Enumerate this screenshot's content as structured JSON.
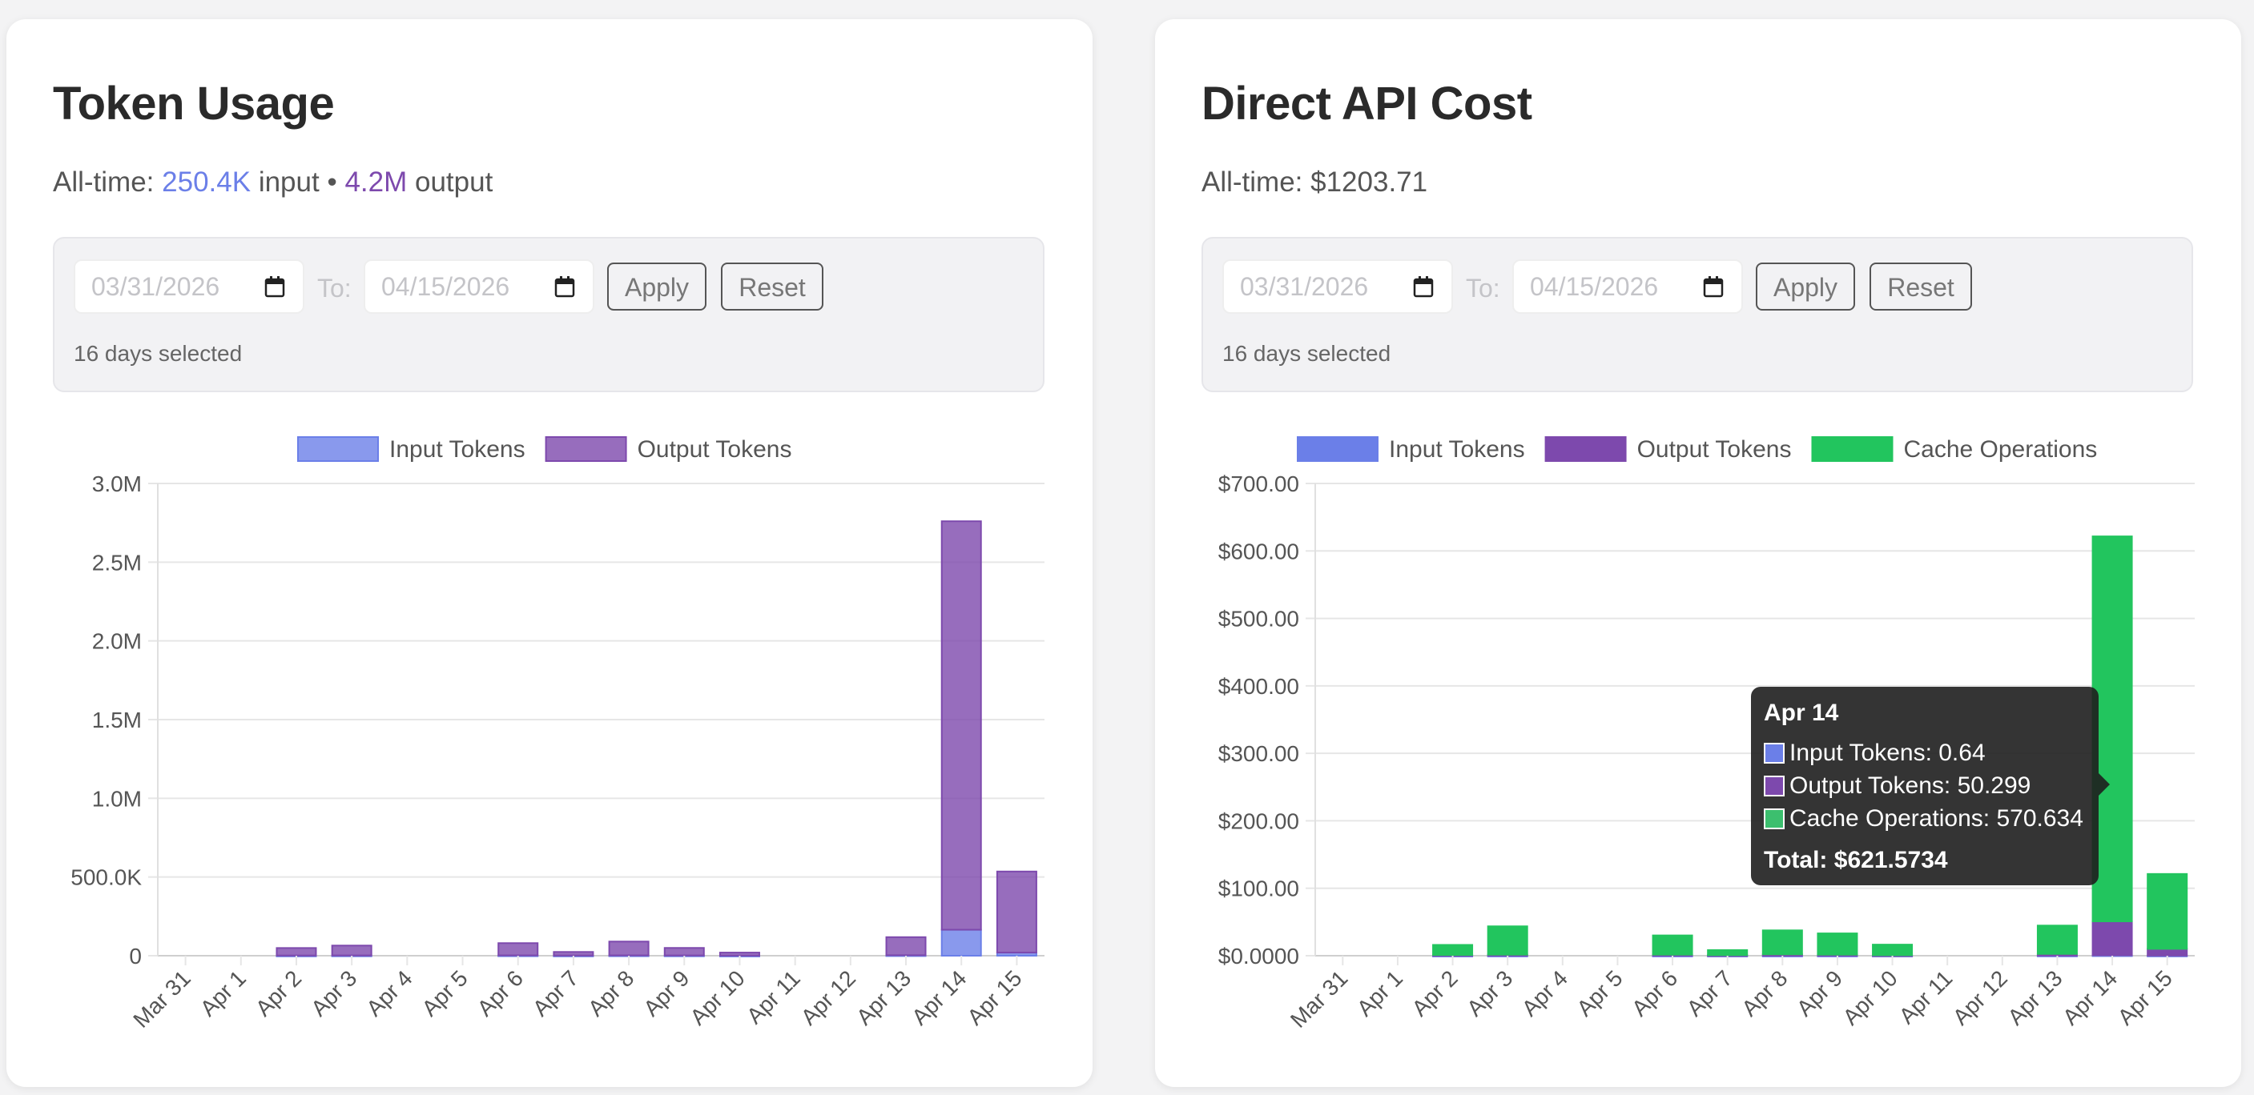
{
  "colors": {
    "input": "#6b7fe8",
    "output": "#7d49ad",
    "cache": "#22c55e",
    "input_fill_left": "rgba(107,127,232,0.8)",
    "output_fill_left": "rgba(125,73,173,0.8)"
  },
  "filter": {
    "from_date": "03/31/2026",
    "to_label": "To:",
    "to_date": "04/15/2026",
    "apply_label": "Apply",
    "reset_label": "Reset",
    "days_selected": "16 days selected"
  },
  "token_usage": {
    "title": "Token Usage",
    "alltime_prefix": "All-time:",
    "alltime_input_value": "250.4K",
    "alltime_input_word": "input",
    "alltime_separator": "•",
    "alltime_output_value": "4.2M",
    "alltime_output_word": "output"
  },
  "api_cost": {
    "title": "Direct API Cost",
    "alltime": "All-time: $1203.71"
  },
  "tooltip": {
    "title": "Apr 14",
    "rows": [
      "Input Tokens: 0.64",
      "Output Tokens: 50.299",
      "Cache Operations: 570.634"
    ],
    "total": "Total: $621.5734"
  },
  "chart_data": [
    {
      "type": "bar",
      "stacked": true,
      "categories": [
        "Mar 31",
        "Apr 1",
        "Apr 2",
        "Apr 3",
        "Apr 4",
        "Apr 5",
        "Apr 6",
        "Apr 7",
        "Apr 8",
        "Apr 9",
        "Apr 10",
        "Apr 11",
        "Apr 12",
        "Apr 13",
        "Apr 14",
        "Apr 15"
      ],
      "series": [
        {
          "name": "Input Tokens",
          "values": [
            0,
            0,
            1000,
            1500,
            0,
            0,
            2000,
            1000,
            2000,
            1500,
            500,
            0,
            0,
            3000,
            165000,
            20000
          ]
        },
        {
          "name": "Output Tokens",
          "values": [
            0,
            0,
            48000,
            63000,
            0,
            0,
            78000,
            23000,
            88000,
            48000,
            19500,
            0,
            0,
            115000,
            2595000,
            515000
          ]
        }
      ],
      "yticks": [
        "0",
        "500.0K",
        "1.0M",
        "1.5M",
        "2.0M",
        "2.5M",
        "3.0M"
      ],
      "ylim": [
        0,
        3000000
      ],
      "legend": "top-center",
      "grid": true
    },
    {
      "type": "bar",
      "stacked": true,
      "categories": [
        "Mar 31",
        "Apr 1",
        "Apr 2",
        "Apr 3",
        "Apr 4",
        "Apr 5",
        "Apr 6",
        "Apr 7",
        "Apr 8",
        "Apr 9",
        "Apr 10",
        "Apr 11",
        "Apr 12",
        "Apr 13",
        "Apr 14",
        "Apr 15"
      ],
      "series": [
        {
          "name": "Input Tokens",
          "values": [
            0,
            0,
            0.05,
            0.1,
            0,
            0,
            0.1,
            0.05,
            0.1,
            0.1,
            0.05,
            0,
            0,
            0.2,
            0.64,
            0.2
          ]
        },
        {
          "name": "Output Tokens",
          "values": [
            0,
            0,
            1,
            1.5,
            0,
            0,
            1.5,
            0.8,
            2,
            1.5,
            0.7,
            0,
            0,
            2.5,
            50.299,
            10
          ]
        },
        {
          "name": "Cache Operations",
          "values": [
            0,
            0,
            15,
            42,
            0,
            0,
            28.5,
            7.5,
            35.5,
            31.5,
            15.7,
            0,
            0,
            42,
            570.634,
            111
          ]
        }
      ],
      "yticks": [
        "$0.0000",
        "$100.00",
        "$200.00",
        "$300.00",
        "$400.00",
        "$500.00",
        "$600.00",
        "$700.00"
      ],
      "ylim": [
        0,
        700
      ],
      "legend": "top-center",
      "grid": true,
      "tooltip_category": "Apr 14"
    }
  ]
}
